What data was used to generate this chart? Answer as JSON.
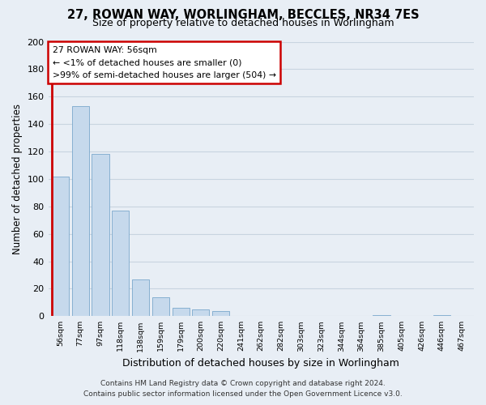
{
  "title": "27, ROWAN WAY, WORLINGHAM, BECCLES, NR34 7ES",
  "subtitle": "Size of property relative to detached houses in Worlingham",
  "xlabel": "Distribution of detached houses by size in Worlingham",
  "ylabel": "Number of detached properties",
  "bar_labels": [
    "56sqm",
    "77sqm",
    "97sqm",
    "118sqm",
    "138sqm",
    "159sqm",
    "179sqm",
    "200sqm",
    "220sqm",
    "241sqm",
    "262sqm",
    "282sqm",
    "303sqm",
    "323sqm",
    "344sqm",
    "364sqm",
    "385sqm",
    "405sqm",
    "426sqm",
    "446sqm",
    "467sqm"
  ],
  "bar_values": [
    102,
    153,
    118,
    77,
    27,
    14,
    6,
    5,
    4,
    0,
    0,
    0,
    0,
    0,
    0,
    0,
    1,
    0,
    0,
    1,
    0
  ],
  "bar_color": "#c6d9ec",
  "bar_edge_color": "#7aa8cc",
  "highlight_color": "#cc0000",
  "highlight_index": 0,
  "ylim": [
    0,
    200
  ],
  "yticks": [
    0,
    20,
    40,
    60,
    80,
    100,
    120,
    140,
    160,
    180,
    200
  ],
  "annotation_title": "27 ROWAN WAY: 56sqm",
  "annotation_line1": "← <1% of detached houses are smaller (0)",
  "annotation_line2": ">99% of semi-detached houses are larger (504) →",
  "annotation_box_color": "#ffffff",
  "annotation_box_edge": "#cc0000",
  "footer_line1": "Contains HM Land Registry data © Crown copyright and database right 2024.",
  "footer_line2": "Contains public sector information licensed under the Open Government Licence v3.0.",
  "background_color": "#e8eef5",
  "grid_color": "#c8d4e0",
  "title_fontsize": 10.5,
  "subtitle_fontsize": 9,
  "xlabel_fontsize": 9,
  "ylabel_fontsize": 8.5
}
